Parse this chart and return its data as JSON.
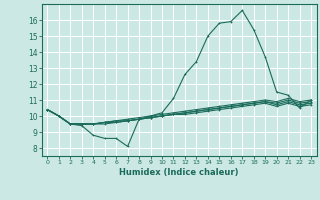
{
  "xlabel": "Humidex (Indice chaleur)",
  "bg_color": "#cce8e4",
  "grid_color": "#ffffff",
  "line_color": "#1a6b5a",
  "xlim": [
    -0.5,
    23.5
  ],
  "ylim": [
    7.5,
    17.0
  ],
  "yticks": [
    8,
    9,
    10,
    11,
    12,
    13,
    14,
    15,
    16
  ],
  "xticks": [
    0,
    1,
    2,
    3,
    4,
    5,
    6,
    7,
    8,
    9,
    10,
    11,
    12,
    13,
    14,
    15,
    16,
    17,
    18,
    19,
    20,
    21,
    22,
    23
  ],
  "series": [
    [
      10.4,
      10.0,
      9.5,
      9.4,
      8.8,
      8.6,
      8.6,
      8.1,
      9.8,
      10.0,
      10.2,
      11.1,
      12.6,
      13.4,
      15.0,
      15.8,
      15.9,
      16.6,
      15.4,
      13.7,
      11.5,
      11.3,
      10.5,
      11.0
    ],
    [
      10.4,
      10.0,
      9.5,
      9.5,
      9.5,
      9.6,
      9.7,
      9.8,
      9.9,
      10.0,
      10.1,
      10.2,
      10.3,
      10.4,
      10.5,
      10.6,
      10.7,
      10.8,
      10.9,
      11.0,
      10.9,
      11.1,
      10.9,
      11.0
    ],
    [
      10.4,
      10.0,
      9.5,
      9.5,
      9.5,
      9.6,
      9.7,
      9.7,
      9.8,
      9.9,
      10.0,
      10.1,
      10.2,
      10.3,
      10.4,
      10.5,
      10.6,
      10.7,
      10.8,
      10.9,
      10.8,
      11.0,
      10.8,
      10.9
    ],
    [
      10.4,
      10.0,
      9.5,
      9.5,
      9.5,
      9.6,
      9.6,
      9.7,
      9.8,
      9.9,
      10.0,
      10.1,
      10.2,
      10.3,
      10.4,
      10.5,
      10.6,
      10.7,
      10.8,
      10.9,
      10.7,
      10.9,
      10.7,
      10.8
    ],
    [
      10.4,
      10.0,
      9.5,
      9.5,
      9.5,
      9.5,
      9.6,
      9.7,
      9.8,
      9.9,
      10.0,
      10.1,
      10.1,
      10.2,
      10.3,
      10.4,
      10.5,
      10.6,
      10.7,
      10.8,
      10.6,
      10.8,
      10.6,
      10.7
    ]
  ],
  "marker_size": 2.0,
  "line_width": 0.8
}
